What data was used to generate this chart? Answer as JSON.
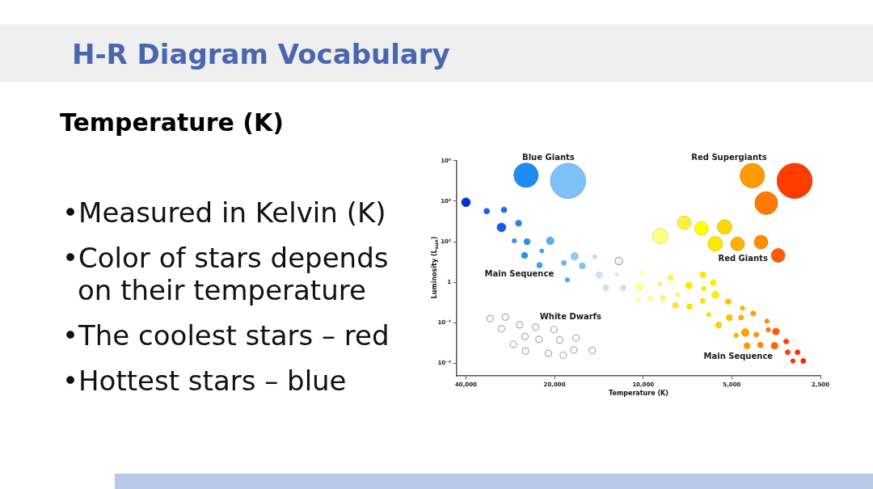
{
  "chart_data": {
    "type": "bubble",
    "title": "H-R Diagram Vocabulary",
    "subtitle": "Temperature (K)",
    "xlabel": "Temperature (K)",
    "ylabel": "Luminosity (L$_{sun}$)",
    "log": "xy",
    "xlim": [
      43000,
      2500
    ],
    "xticks": [
      {
        "value": 40000,
        "label": "40,000"
      },
      {
        "value": 20000,
        "label": "20,000"
      },
      {
        "value": 10000,
        "label": "10,000"
      },
      {
        "value": 5000,
        "label": "5,000"
      },
      {
        "value": 2500,
        "label": "2,500"
      }
    ],
    "ylim": [
      2.4e-05,
      1000000
    ],
    "yticks": [
      {
        "value": 1000000,
        "label": "10⁶"
      },
      {
        "value": 10000,
        "label": "10⁴"
      },
      {
        "value": 100,
        "label": "10²"
      },
      1,
      {
        "value": 0.01,
        "label": "10⁻²"
      },
      {
        "value": 0.0001,
        "label": "10⁻⁴"
      }
    ],
    "x": [
      25000,
      18000,
      40000,
      34000,
      29700,
      30300,
      26500,
      27400,
      24800,
      20700,
      22100,
      25300,
      22500,
      18600,
      17100,
      16100,
      14600,
      12100,
      18100,
      14100,
      12300,
      13400,
      11700,
      10100,
      8080,
      6270,
      10300,
      8790,
      7000,
      5780,
      6230,
      10400,
      9440,
      8570,
      7640,
      5690,
      7770,
      6960,
      6280,
      5140,
      4600,
      4230,
      5990,
      5100,
      4650,
      3800,
      5540,
      4500,
      4830,
      4130,
      3760,
      3540,
      3270,
      4440,
      4000,
      3580,
      3230,
      2990,
      3100,
      2860,
      8750,
      7250,
      6340,
      5290,
      5690,
      4780,
      3980,
      3480,
      4260,
      3060,
      3820,
      33100,
      29400,
      30300,
      26300,
      23200,
      20100,
      25200,
      22600,
      19200,
      16900,
      27600,
      25100,
      21000,
      18700,
      17200,
      14900
    ],
    "values": [
      190000,
      100000,
      8800,
      3200,
      3700,
      510,
      810,
      110,
      100,
      110,
      35,
      21,
      6.9,
      9,
      19,
      6.4,
      18,
      11,
      1.3,
      2.3,
      2.4,
      0.54,
      0.53,
      2.9,
      1.7,
      2.3,
      0.59,
      0.83,
      0.69,
      0.96,
      0.49,
      0.14,
      0.15,
      0.16,
      0.24,
      0.24,
      0.072,
      0.062,
      0.12,
      0.11,
      0.053,
      0.029,
      0.025,
      0.018,
      0.018,
      0.012,
      0.0077,
      0.0033,
      0.0024,
      0.0026,
      0.0046,
      0.0037,
      0.0012,
      0.00073,
      0.0008,
      0.00073,
      0.00035,
      0.00035,
      0.00013,
      0.00013,
      190,
      860,
      450,
      530,
      79,
      77,
      95,
      21,
      180000,
      100000,
      8000,
      0.016,
      0.019,
      0.005,
      0.0079,
      0.006,
      0.0046,
      0.0021,
      0.0015,
      0.0014,
      0.0018,
      0.00086,
      0.0004,
      0.00031,
      0.00025,
      0.00045,
      0.00043
    ],
    "sizes": [
      0.48,
      1,
      0.061,
      0.024,
      0.024,
      0.061,
      0.029,
      0.015,
      0.029,
      0.046,
      0.012,
      0.029,
      0.024,
      0.019,
      0.046,
      0.029,
      0.012,
      0.046,
      0.015,
      0.034,
      0.012,
      0.029,
      0.024,
      0.015,
      0.029,
      0.029,
      0.053,
      0.015,
      0.034,
      0.029,
      0.015,
      0.015,
      0.024,
      0.024,
      0.012,
      0.04,
      0.029,
      0.024,
      0.019,
      0.024,
      0.015,
      0.019,
      0.015,
      0.029,
      0.019,
      0.015,
      0.029,
      0.046,
      0.015,
      0.019,
      0.015,
      0.034,
      0.019,
      0.029,
      0.024,
      0.034,
      0.019,
      0.019,
      0.015,
      0.019,
      0.19,
      0.15,
      0.15,
      0.17,
      0.17,
      0.15,
      0.15,
      0.15,
      0.48,
      1,
      0.42,
      0.034,
      0.034,
      0.034,
      0.034,
      0.034,
      0.034,
      0.034,
      0.034,
      0.034,
      0.034,
      0.034,
      0.034,
      0.034,
      0.034,
      0.034,
      0.034
    ],
    "colors": [
      "#1e8cf5",
      "#7cc2f8",
      "#0a2fd6",
      "#1e5be6",
      "#1f6fe8",
      "#1a5ae0",
      "#2a82f0",
      "#3890f0",
      "#2e8ef0",
      "#5fabf2",
      "#4a9ef0",
      "#2a8ff0",
      "#3d9ff0",
      "#6db3f0",
      "#92c9f5",
      "#82c0f0",
      "#c8d6ea",
      "#f4f4f0",
      "#5aa6ee",
      "#d6def0",
      "#e6e6e6",
      "#dedede",
      "#dcdcd8",
      "#ffff99",
      "#ffee66",
      "#ffe800",
      "#ffffa0",
      "#fff080",
      "#ffe800",
      "#ffee00",
      "#ffe000",
      "#ffff99",
      "#ffffa0",
      "#fff080",
      "#ffee60",
      "#ffee00",
      "#ffe040",
      "#ffe000",
      "#ffdd00",
      "#ffc000",
      "#ffb000",
      "#ffa000",
      "#ffdd00",
      "#ffc000",
      "#ffaa00",
      "#ff8800",
      "#ffd000",
      "#ff9f00",
      "#ffb000",
      "#ff9900",
      "#ff7700",
      "#ff5a00",
      "#ff4400",
      "#ff9900",
      "#ff8800",
      "#ff6600",
      "#ff4400",
      "#ff3300",
      "#ff3300",
      "#ff2200",
      "#ffff80",
      "#ffee40",
      "#ffff00",
      "#ffd800",
      "#ffe800",
      "#ffb000",
      "#ff8c00",
      "#ff5a00",
      "#ff9a00",
      "#ff3c00",
      "#ff7a00",
      "#ffffff",
      "#ffffff",
      "#ffffff",
      "#ffffff",
      "#ffffff",
      "#ffffff",
      "#ffffff",
      "#ffffff",
      "#ffffff",
      "#ffffff",
      "#ffffff",
      "#ffffff",
      "#ffffff",
      "#ffffff",
      "#ffffff",
      "#ffffff"
    ],
    "annotations": [
      "Blue Giants",
      "Red Supergiants",
      "Main Sequence",
      "Red Giants",
      "White Dwarfs",
      "Main Sequence",
      "•Measured in Kelvin (K)",
      "•Color of stars depends on their temperature",
      "•The coolest stars – red",
      "•Hottest stars – blue"
    ]
  }
}
